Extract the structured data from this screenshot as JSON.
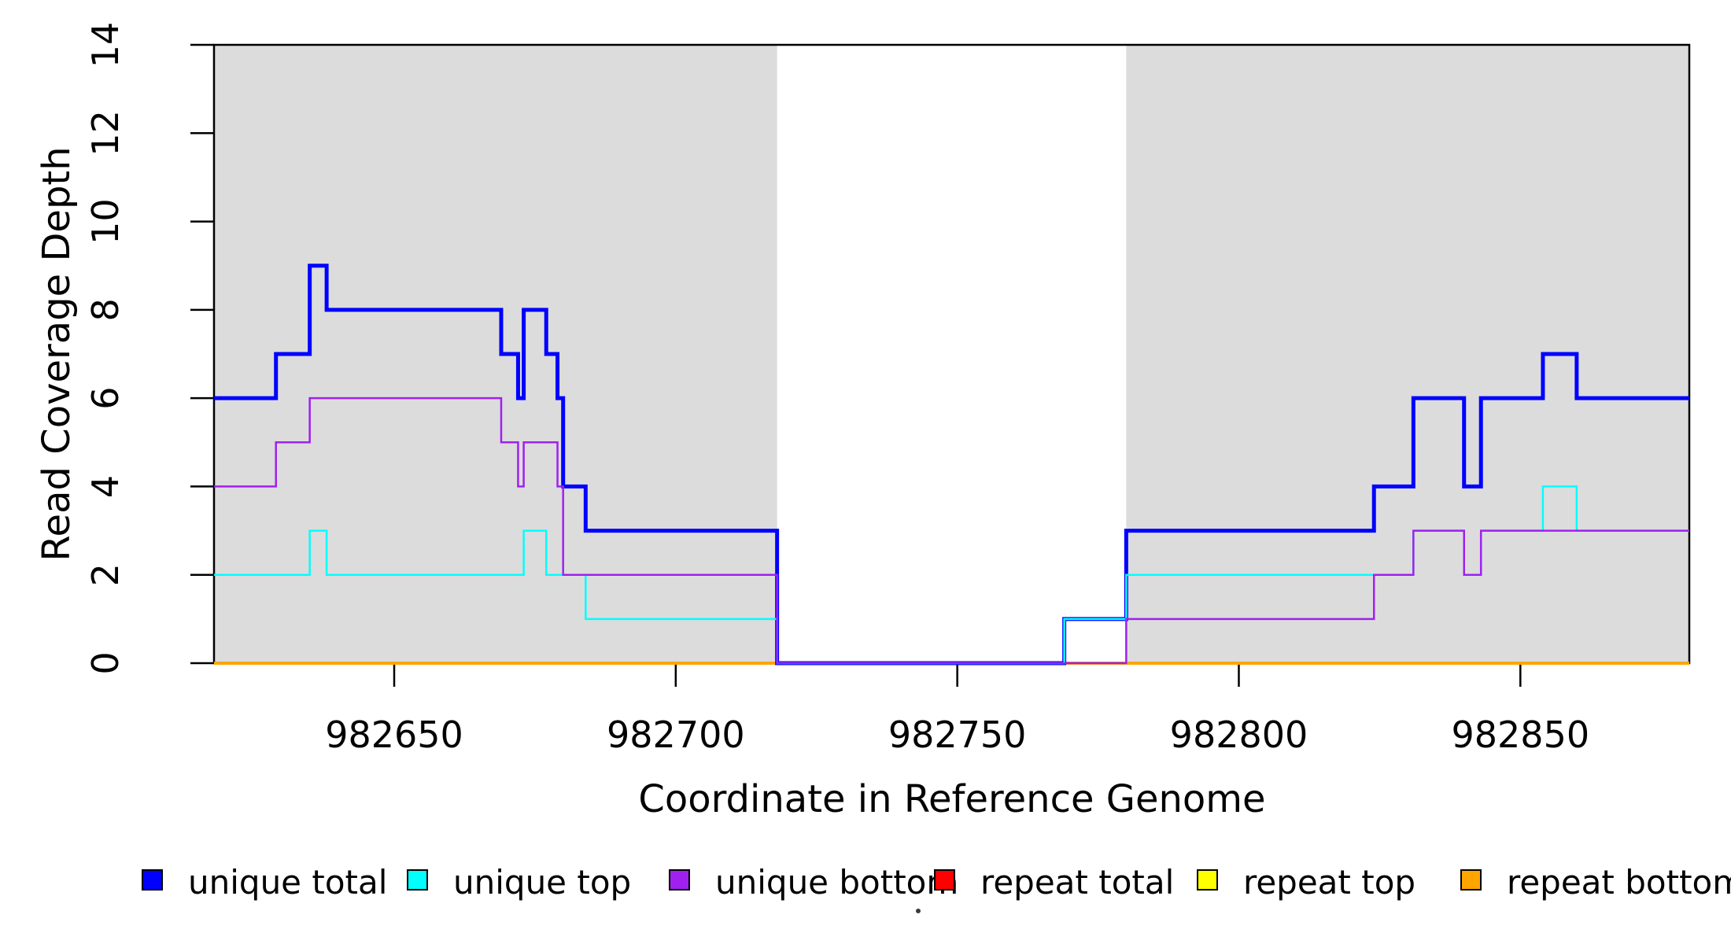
{
  "chart_data": {
    "type": "step-line",
    "title": "",
    "xlabel": "Coordinate in Reference Genome",
    "ylabel": "Read Coverage Depth",
    "xlim": [
      982618,
      982880
    ],
    "ylim": [
      0,
      14
    ],
    "x_ticks": [
      982650,
      982700,
      982750,
      982800,
      982850
    ],
    "y_ticks": [
      0,
      2,
      4,
      6,
      8,
      10,
      12,
      14
    ],
    "grid": false,
    "plot_background": "#ffffff",
    "shade_color": "#dcdcdc",
    "shaded_regions": [
      {
        "name": "shaded-region-left",
        "x_start": 982618,
        "x_end": 982718
      },
      {
        "name": "shaded-region-right",
        "x_start": 982780,
        "x_end": 982880
      }
    ],
    "series": [
      {
        "name": "repeat total",
        "color": "#ff0000",
        "width": 3,
        "segments": [
          [
            982618,
            982880,
            0
          ]
        ]
      },
      {
        "name": "repeat top",
        "color": "#ffff00",
        "width": 2.5,
        "segments": [
          [
            982618,
            982880,
            0
          ]
        ]
      },
      {
        "name": "repeat bottom",
        "color": "#ffa500",
        "width": 4,
        "segments": [
          [
            982618,
            982880,
            0
          ]
        ]
      },
      {
        "name": "unique total",
        "color": "#0000ff",
        "width": 5,
        "segments": [
          [
            982618,
            982629,
            6
          ],
          [
            982629,
            982635,
            7
          ],
          [
            982635,
            982638,
            9
          ],
          [
            982638,
            982669,
            8
          ],
          [
            982669,
            982672,
            7
          ],
          [
            982672,
            982673,
            6
          ],
          [
            982673,
            982677,
            8
          ],
          [
            982677,
            982679,
            7
          ],
          [
            982679,
            982680,
            6
          ],
          [
            982680,
            982684,
            4
          ],
          [
            982684,
            982718,
            3
          ],
          [
            982718,
            982769,
            0
          ],
          [
            982769,
            982780,
            1
          ],
          [
            982780,
            982824,
            3
          ],
          [
            982824,
            982831,
            4
          ],
          [
            982831,
            982840,
            6
          ],
          [
            982840,
            982843,
            4
          ],
          [
            982843,
            982854,
            6
          ],
          [
            982854,
            982860,
            7
          ],
          [
            982860,
            982880,
            6
          ]
        ]
      },
      {
        "name": "unique top",
        "color": "#00ffff",
        "width": 2.5,
        "segments": [
          [
            982618,
            982635,
            2
          ],
          [
            982635,
            982638,
            3
          ],
          [
            982638,
            982673,
            2
          ],
          [
            982673,
            982677,
            3
          ],
          [
            982677,
            982684,
            2
          ],
          [
            982684,
            982718,
            1
          ],
          [
            982718,
            982769,
            0
          ],
          [
            982769,
            982780,
            1
          ],
          [
            982780,
            982831,
            2
          ],
          [
            982831,
            982840,
            3
          ],
          [
            982840,
            982843,
            2
          ],
          [
            982843,
            982854,
            3
          ],
          [
            982854,
            982860,
            4
          ],
          [
            982860,
            982880,
            3
          ]
        ]
      },
      {
        "name": "unique bottom",
        "color": "#a020f0",
        "width": 2.5,
        "segments": [
          [
            982618,
            982629,
            4
          ],
          [
            982629,
            982635,
            5
          ],
          [
            982635,
            982669,
            6
          ],
          [
            982669,
            982672,
            5
          ],
          [
            982672,
            982673,
            4
          ],
          [
            982673,
            982679,
            5
          ],
          [
            982679,
            982680,
            4
          ],
          [
            982680,
            982718,
            2
          ],
          [
            982718,
            982780,
            0
          ],
          [
            982780,
            982824,
            1
          ],
          [
            982824,
            982831,
            2
          ],
          [
            982831,
            982840,
            3
          ],
          [
            982840,
            982843,
            2
          ],
          [
            982843,
            982880,
            3
          ]
        ]
      }
    ],
    "legend": [
      {
        "label": "unique total",
        "color": "#0000ff"
      },
      {
        "label": "unique top",
        "color": "#00ffff"
      },
      {
        "label": "unique bottom",
        "color": "#a020f0"
      },
      {
        "label": "repeat total",
        "color": "#ff0000"
      },
      {
        "label": "repeat top",
        "color": "#ffff00"
      },
      {
        "label": "repeat bottom",
        "color": "#ffa500"
      }
    ],
    "legend_position": "bottom",
    "stray_marks": [
      {
        "x": 1167,
        "y": 1158,
        "r": 3,
        "color": "#3a3a3a"
      }
    ]
  }
}
